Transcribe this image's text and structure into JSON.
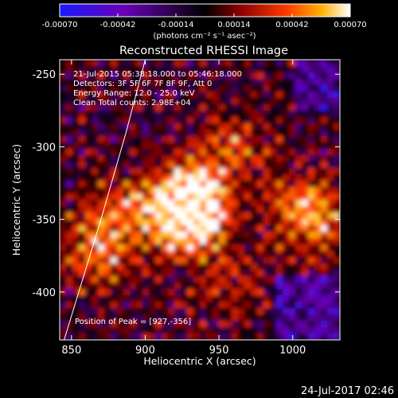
{
  "colors": {
    "background": "#000000",
    "foreground": "#ffffff",
    "colormap": [
      "#1a1aff",
      "#6a00b8",
      "#000000",
      "#8a0000",
      "#ff3a00",
      "#ffb000",
      "#ffffff"
    ]
  },
  "colorbar": {
    "type": "colorbar",
    "range": [
      -0.0007,
      0.0007
    ],
    "tick_labels": [
      "-0.00070",
      "-0.00042",
      "-0.00014",
      "0.00014",
      "0.00042",
      "0.00070"
    ],
    "units_label": "(photons cm⁻² s⁻¹ asec⁻²)"
  },
  "chart_data": {
    "type": "heatmap",
    "title": "Reconstructed RHESSI Image",
    "xlabel": "Heliocentric X (arcsec)",
    "ylabel": "Heliocentric Y (arcsec)",
    "xlim": [
      842,
      1032
    ],
    "ylim": [
      -433,
      -240
    ],
    "xticks": [
      850,
      900,
      950,
      1000
    ],
    "yticks": [
      -250,
      -300,
      -350,
      -400
    ],
    "xtick_labels": [
      "850",
      "900",
      "950",
      "1000"
    ],
    "ytick_labels": [
      "-250",
      "-300",
      "-350",
      "-400"
    ],
    "sources": [
      {
        "x": 930,
        "y": -352,
        "peak": 1.0
      },
      {
        "x": 936,
        "y": -330,
        "peak": 0.75
      },
      {
        "x": 915,
        "y": -340,
        "peak": 0.5
      },
      {
        "x": 868,
        "y": -372,
        "peak": 0.6
      },
      {
        "x": 880,
        "y": -345,
        "peak": 0.45
      },
      {
        "x": 1005,
        "y": -340,
        "peak": 0.55
      },
      {
        "x": 1020,
        "y": -355,
        "peak": 0.4
      },
      {
        "x": 960,
        "y": -300,
        "peak": 0.35
      },
      {
        "x": 955,
        "y": -395,
        "peak": 0.3
      }
    ],
    "limb_points": [
      [
        900,
        -240
      ],
      [
        887,
        -290
      ],
      [
        870,
        -350
      ],
      [
        845,
        -433
      ]
    ],
    "annotations": [
      "21-Jul-2015 05:38:18.000 to 05:46:18.000",
      "Detectors: 3F 5F 6F 7F 8F 9F, Att 0",
      "Energy Range: 12.0 - 25.0 keV",
      "Clean     Total counts: 2.98E+04"
    ],
    "peak_label": "Position of Peak = [927,-356]"
  },
  "footer": {
    "timestamp": "24-Jul-2017 02:46"
  }
}
